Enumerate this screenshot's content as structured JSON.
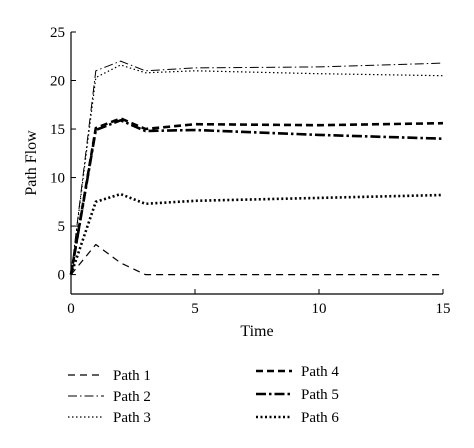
{
  "chart_data": {
    "type": "line",
    "title": "",
    "xlabel": "Time",
    "ylabel": "Path Flow",
    "xlim": [
      0,
      15
    ],
    "ylim": [
      -2,
      25
    ],
    "xticks": [
      0,
      5,
      10,
      15
    ],
    "yticks": [
      0,
      5,
      10,
      15,
      20,
      25
    ],
    "grid": false,
    "legend_position": "bottom",
    "series": [
      {
        "name": "Path 1",
        "style": "dashed-thin",
        "color": "#000000",
        "points": [
          [
            0,
            0
          ],
          [
            1,
            3.1
          ],
          [
            2,
            1.2
          ],
          [
            3,
            0
          ],
          [
            5,
            0
          ],
          [
            10,
            0
          ],
          [
            15,
            0
          ]
        ]
      },
      {
        "name": "Path 2",
        "style": "dashdot-thin",
        "color": "#000000",
        "points": [
          [
            0,
            0
          ],
          [
            1,
            21.0
          ],
          [
            2,
            22.0
          ],
          [
            3,
            21.0
          ],
          [
            5,
            21.3
          ],
          [
            10,
            21.4
          ],
          [
            15,
            21.8
          ]
        ]
      },
      {
        "name": "Path 3",
        "style": "dotted-thin",
        "color": "#000000",
        "points": [
          [
            0,
            0
          ],
          [
            1,
            20.3
          ],
          [
            2,
            21.6
          ],
          [
            3,
            20.8
          ],
          [
            5,
            21.0
          ],
          [
            10,
            20.7
          ],
          [
            15,
            20.5
          ]
        ]
      },
      {
        "name": "Path 4",
        "style": "dashed-thick",
        "color": "#000000",
        "points": [
          [
            0,
            0
          ],
          [
            1,
            15.1
          ],
          [
            2,
            16.1
          ],
          [
            3,
            15.0
          ],
          [
            5,
            15.5
          ],
          [
            10,
            15.4
          ],
          [
            15,
            15.6
          ]
        ]
      },
      {
        "name": "Path 5",
        "style": "dashdot-thick",
        "color": "#000000",
        "points": [
          [
            0,
            0
          ],
          [
            1,
            14.9
          ],
          [
            2,
            15.9
          ],
          [
            3,
            14.8
          ],
          [
            5,
            14.9
          ],
          [
            10,
            14.4
          ],
          [
            15,
            14.0
          ]
        ]
      },
      {
        "name": "Path 6",
        "style": "dotted-thick",
        "color": "#000000",
        "points": [
          [
            0,
            0
          ],
          [
            1,
            7.5
          ],
          [
            2,
            8.3
          ],
          [
            3,
            7.3
          ],
          [
            5,
            7.6
          ],
          [
            10,
            7.9
          ],
          [
            15,
            8.2
          ]
        ]
      }
    ]
  }
}
